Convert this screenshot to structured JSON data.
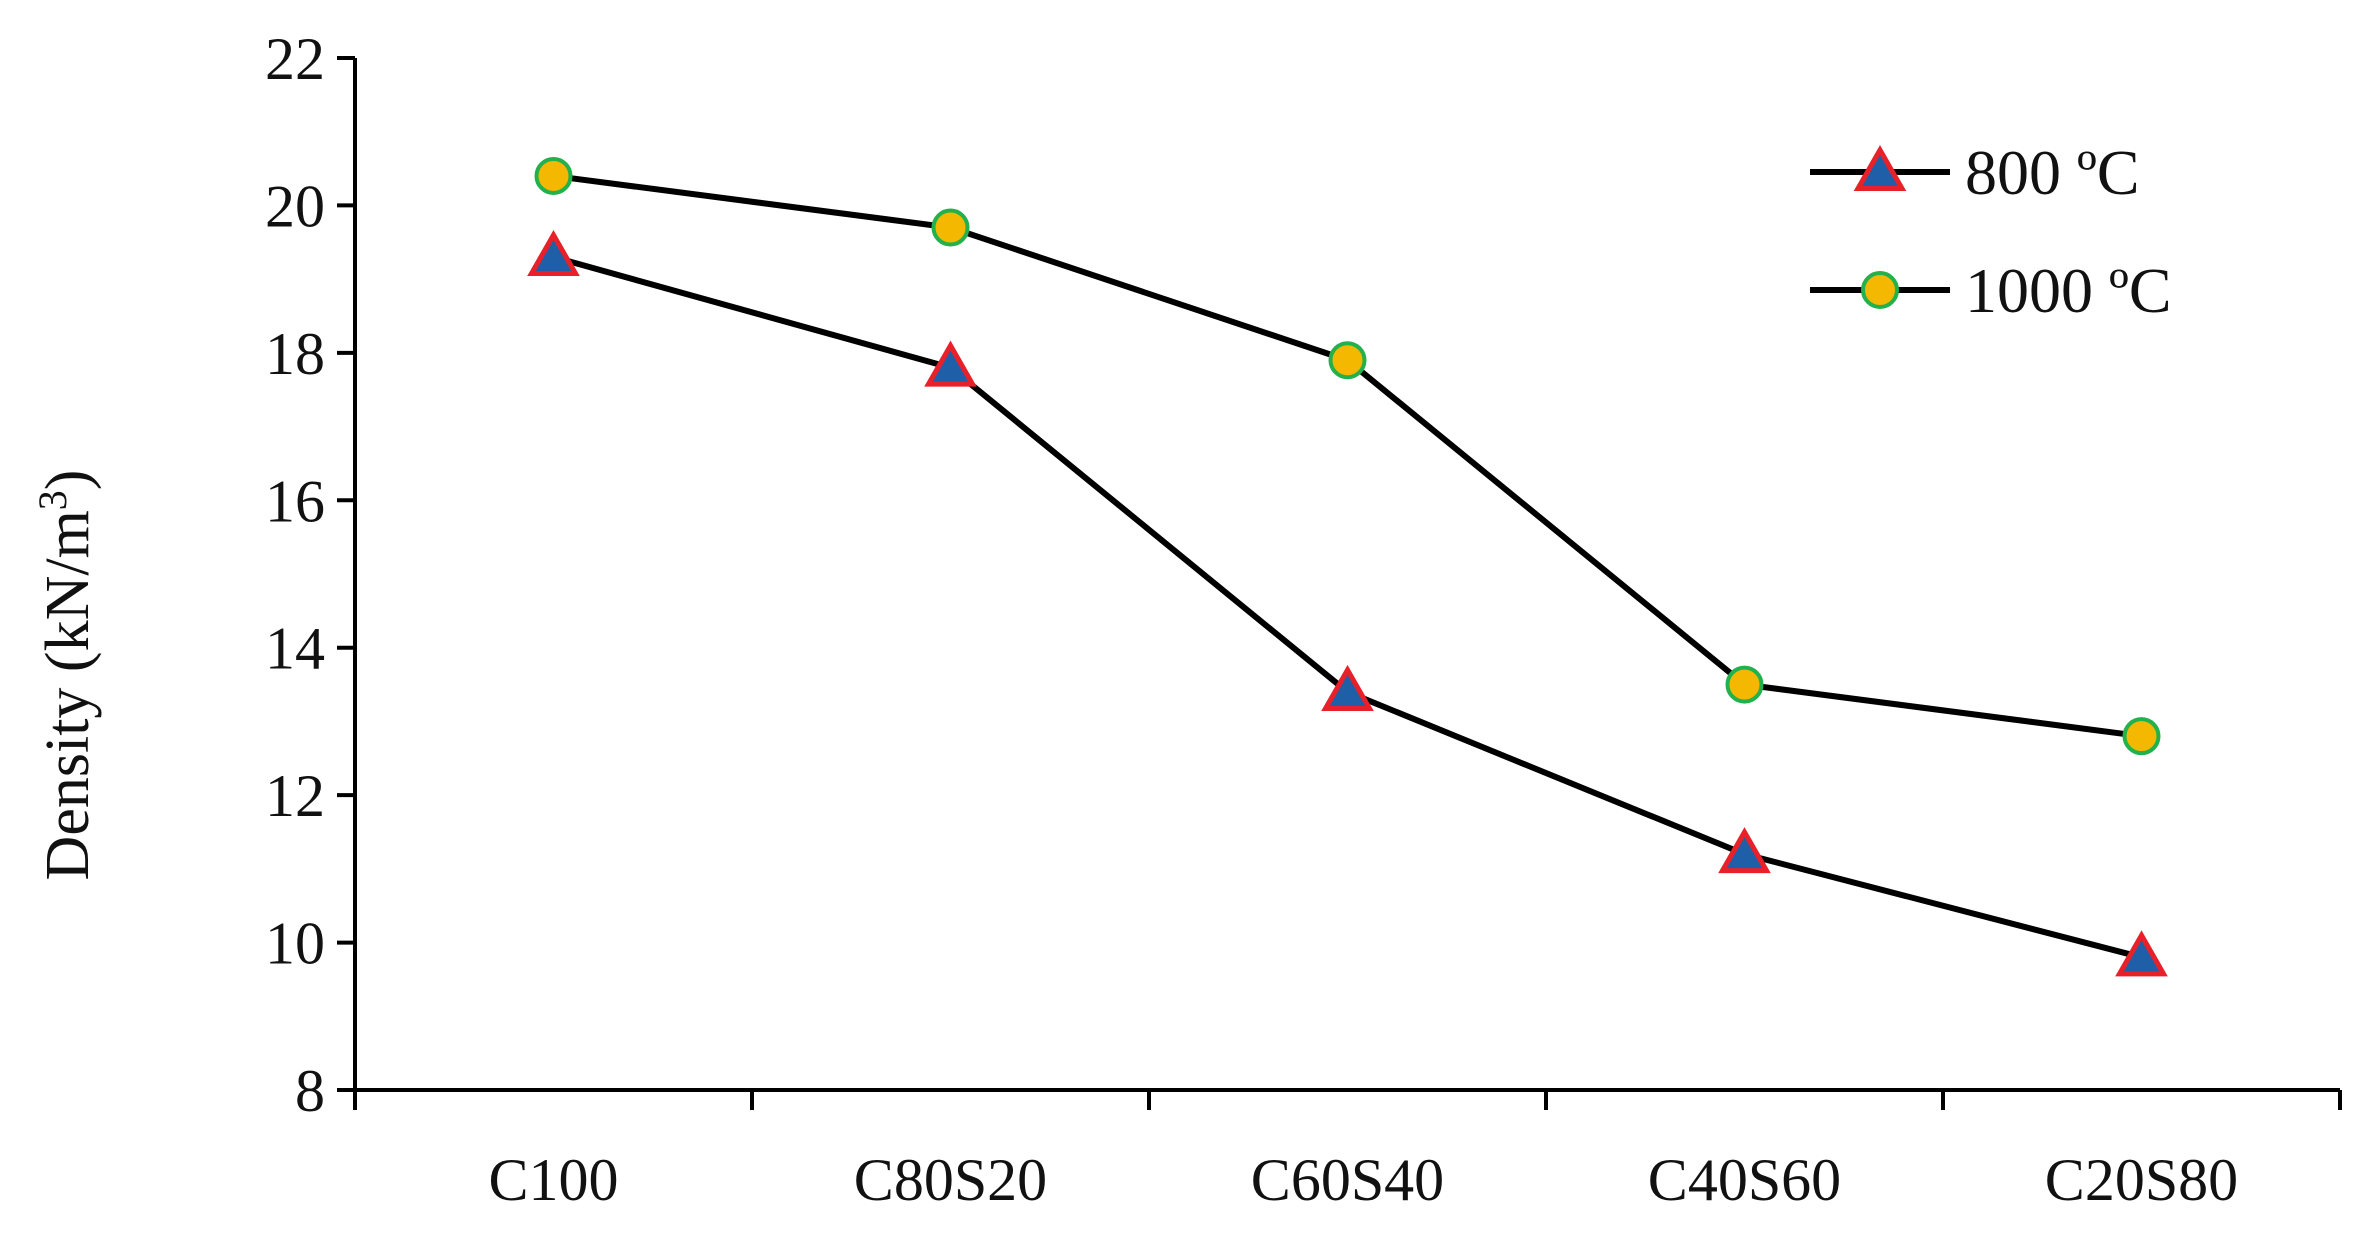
{
  "chart_data": {
    "type": "line",
    "categories": [
      "C100",
      "C80S20",
      "C60S40",
      "C40S60",
      "C20S80"
    ],
    "ylabel_main": "Density (kN/m",
    "ylabel_sup": "3",
    "ylabel_close": ")",
    "ylim": [
      8,
      22
    ],
    "yticks": [
      8,
      10,
      12,
      14,
      16,
      18,
      20,
      22
    ],
    "grid": false,
    "legend_position": "top-right",
    "series": [
      {
        "name": "800 ºC",
        "marker": "triangle",
        "line_color": "#000000",
        "marker_fill": "#1f5fa8",
        "marker_edge": "#e8202a",
        "values": [
          19.3,
          17.8,
          13.4,
          11.2,
          9.8
        ]
      },
      {
        "name": "1000  ºC",
        "marker": "circle",
        "line_color": "#000000",
        "marker_fill": "#f5b800",
        "marker_edge": "#22b14c",
        "values": [
          20.4,
          19.7,
          17.9,
          13.5,
          12.8
        ]
      }
    ]
  }
}
